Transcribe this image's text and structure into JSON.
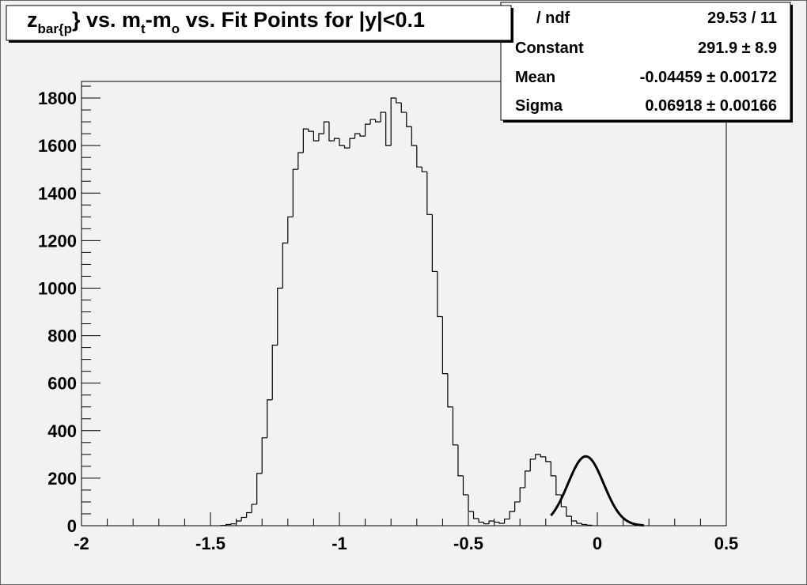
{
  "chart_data": {
    "type": "bar",
    "title": {
      "base": "z",
      "base_sub": "bar{p",
      "part2": "} vs. m",
      "part2_sub": "t",
      "part3": "-m",
      "part3_sub": "o",
      "part4": " vs. Fit Points for |y|<0.1"
    },
    "xlabel": "",
    "ylabel": "",
    "xlim": [
      -2,
      0.5
    ],
    "ylim": [
      0,
      1870
    ],
    "x_ticks": [
      "-2",
      "-1.5",
      "-1",
      "-0.5",
      "0",
      "0.5"
    ],
    "y_ticks": [
      "0",
      "200",
      "400",
      "600",
      "800",
      "1000",
      "1200",
      "1400",
      "1600",
      "1800"
    ],
    "bin_width": 0.02,
    "histogram": {
      "x_start": -1.46,
      "values": [
        1,
        5,
        8,
        20,
        35,
        55,
        90,
        220,
        370,
        530,
        760,
        1000,
        1190,
        1300,
        1500,
        1570,
        1670,
        1660,
        1620,
        1650,
        1700,
        1620,
        1630,
        1600,
        1590,
        1630,
        1650,
        1640,
        1690,
        1710,
        1700,
        1740,
        1600,
        1800,
        1780,
        1740,
        1680,
        1600,
        1510,
        1490,
        1310,
        1070,
        880,
        640,
        500,
        340,
        210,
        130,
        60,
        30,
        15,
        8,
        20,
        15,
        10,
        28,
        60,
        100,
        160,
        230,
        280,
        300,
        290,
        270,
        210,
        130,
        80,
        40,
        20,
        10,
        5,
        2
      ]
    },
    "fit": {
      "name": "gaus",
      "constant": 291.9,
      "mean": -0.04459,
      "sigma": 0.06918,
      "x_range": [
        -0.18,
        0.18
      ]
    },
    "stats_box": {
      "rows": [
        {
          "label": "/ ndf",
          "value": "29.53 / 11"
        },
        {
          "label": "Constant",
          "value": "291.9 ± 8.9"
        },
        {
          "label": "Mean",
          "value": "-0.04459 ± 0.00172"
        },
        {
          "label": "Sigma",
          "value": "0.06918 ± 0.00166"
        }
      ]
    },
    "grid": false,
    "legend": "none"
  },
  "colors": {
    "background": "#f2f2f2",
    "frame": "#000000",
    "histogram_line": "#000000",
    "fit_line": "#000000",
    "box_fill": "#ffffff"
  }
}
